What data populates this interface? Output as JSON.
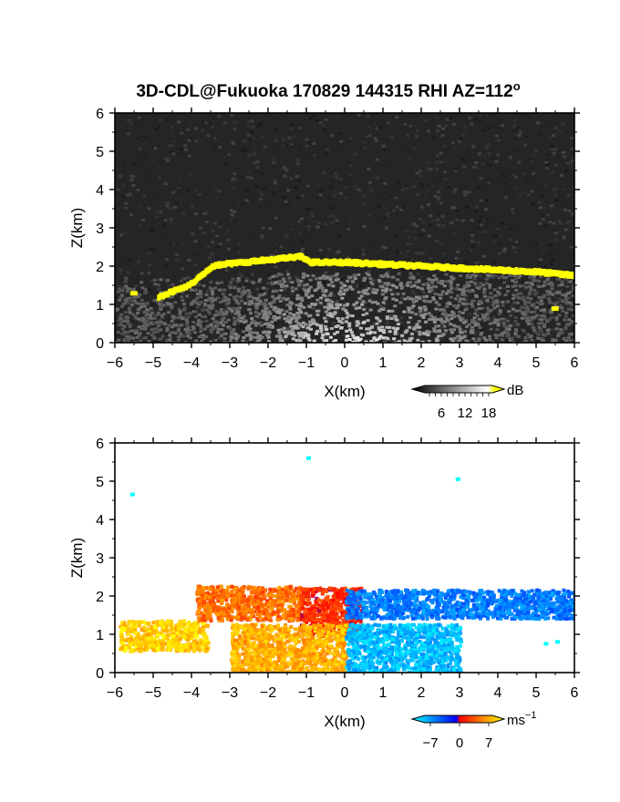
{
  "figure": {
    "title": "3D-CDL@Fukuoka 170829 144315 RHI AZ=112",
    "title_degree_symbol": "o"
  },
  "chart_data": [
    {
      "type": "heatmap",
      "panel": "top",
      "xlabel": "X(km)",
      "ylabel": "Z(km)",
      "xlim": [
        -6,
        6
      ],
      "ylim": [
        0,
        6
      ],
      "xticks": [
        "−6",
        "−5",
        "−4",
        "−3",
        "−2",
        "−1",
        "0",
        "1",
        "2",
        "3",
        "4",
        "5",
        "6"
      ],
      "yticks": [
        "0",
        "1",
        "2",
        "3",
        "4",
        "5",
        "6"
      ],
      "colorbar": {
        "unit": "dB",
        "ticks": [
          "6",
          "12",
          "18"
        ],
        "range": [
          0,
          20
        ],
        "colors": [
          "#000000",
          "#ffffff",
          "#ffff00"
        ]
      },
      "background_color": "#252525",
      "layers": [
        {
          "kind": "near-ground haze",
          "x": [
            -6,
            6
          ],
          "z": [
            0,
            1.9
          ],
          "value_range_db": [
            4,
            12
          ]
        },
        {
          "kind": "cloud base (>18 dB)",
          "color": "#ffff00",
          "points": [
            [
              -4.9,
              1.2
            ],
            [
              -4.5,
              1.35
            ],
            [
              -4.1,
              1.5
            ],
            [
              -3.5,
              2.0
            ],
            [
              -3.2,
              2.05
            ],
            [
              -1.2,
              2.25
            ],
            [
              -0.9,
              2.1
            ],
            [
              0,
              2.1
            ],
            [
              1,
              2.05
            ],
            [
              2,
              2.0
            ],
            [
              3,
              1.95
            ],
            [
              4,
              1.9
            ],
            [
              5,
              1.85
            ],
            [
              6,
              1.75
            ]
          ]
        },
        {
          "kind": "speckle (>18 dB)",
          "color": "#ffff00",
          "points": [
            [
              -5.6,
              1.3
            ],
            [
              -3.4,
              2.0
            ],
            [
              5.4,
              0.9
            ]
          ]
        }
      ]
    },
    {
      "type": "heatmap",
      "panel": "bottom",
      "xlabel": "X(km)",
      "ylabel": "Z(km)",
      "xlim": [
        -6,
        6
      ],
      "ylim": [
        0,
        6
      ],
      "xticks": [
        "−6",
        "−5",
        "−4",
        "−3",
        "−2",
        "−1",
        "0",
        "1",
        "2",
        "3",
        "4",
        "5",
        "6"
      ],
      "yticks": [
        "0",
        "1",
        "2",
        "3",
        "4",
        "5",
        "6"
      ],
      "colorbar": {
        "unit": "ms",
        "unit_exponent": "−1",
        "ticks": [
          "−7",
          "0",
          "7"
        ],
        "range": [
          -8,
          8
        ],
        "colors": [
          "#00ffff",
          "#0000ff",
          "#ff0000",
          "#ffff00"
        ]
      },
      "field": "radial velocity",
      "regions": [
        {
          "x": [
            -5.9,
            -3.6
          ],
          "z": [
            0.6,
            1.4
          ],
          "velocity_ms": 6.5
        },
        {
          "x": [
            -3.9,
            -1.2
          ],
          "z": [
            1.4,
            2.3
          ],
          "velocity_ms": 3.5
        },
        {
          "x": [
            -1.2,
            0.4
          ],
          "z": [
            1.0,
            2.25
          ],
          "velocity_ms": 1.5
        },
        {
          "x": [
            -3.0,
            0.0
          ],
          "z": [
            0.0,
            1.3
          ],
          "velocity_ms": 5.5
        },
        {
          "x": [
            0.0,
            6.0
          ],
          "z": [
            1.45,
            2.2
          ],
          "velocity_ms": -4.0
        },
        {
          "x": [
            0.0,
            3.0
          ],
          "z": [
            0.0,
            1.3
          ],
          "velocity_ms": -6.0
        }
      ],
      "isolated_points": [
        [
          -5.6,
          4.7
        ],
        [
          -1.0,
          5.65
        ],
        [
          2.9,
          5.1
        ],
        [
          5.2,
          0.8
        ],
        [
          5.5,
          0.85
        ]
      ]
    }
  ]
}
